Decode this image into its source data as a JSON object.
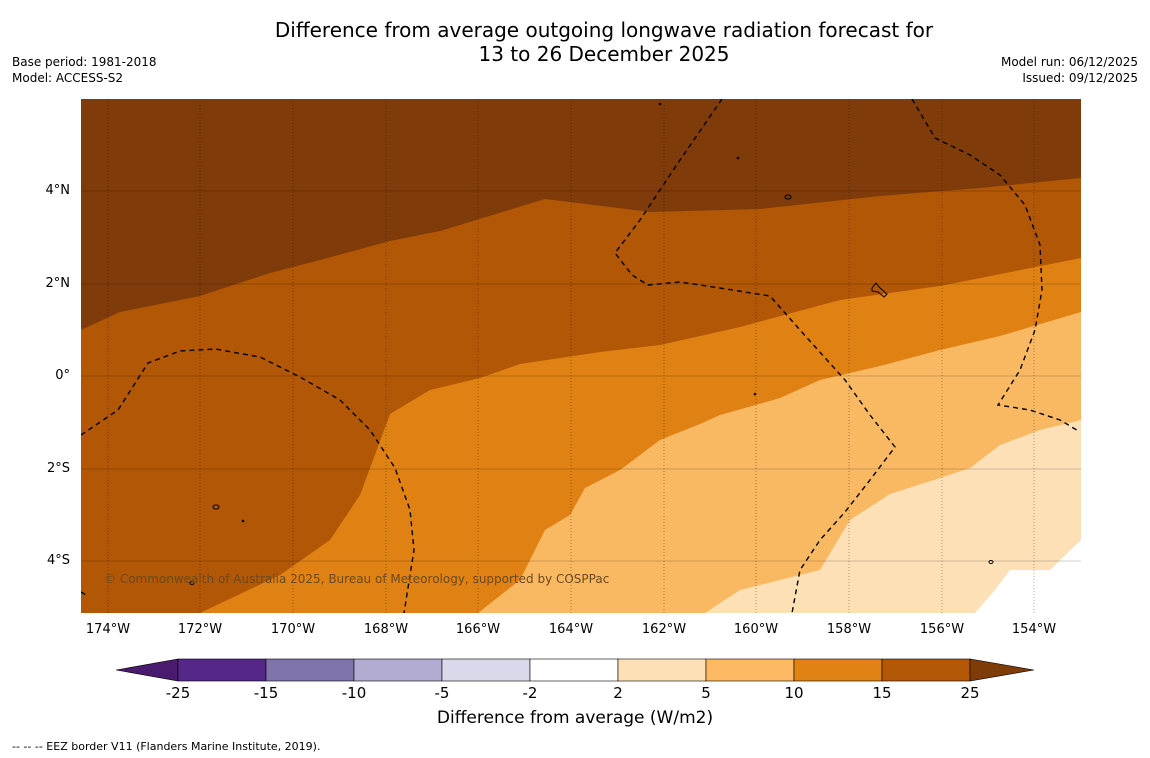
{
  "title": {
    "line1": "Difference from average outgoing longwave radiation forecast for",
    "line2": "13 to 26 December 2025"
  },
  "meta_left": {
    "base_period": "Base period: 1981-2018",
    "model": "Model: ACCESS-S2"
  },
  "meta_right": {
    "model_run": "Model run: 06/12/2025",
    "issued": "Issued: 09/12/2025"
  },
  "map": {
    "lat_labels": [
      "4°N",
      "2°N",
      "0°",
      "2°S",
      "4°S"
    ],
    "lon_labels": [
      "174°W",
      "172°W",
      "170°W",
      "168°W",
      "166°W",
      "164°W",
      "162°W",
      "160°W",
      "158°W",
      "156°W",
      "154°W"
    ],
    "credit": "© Commonwealth of Australia 2025, Bureau of Meteorology, supported by COSPPac",
    "colors": {
      "gt25": "#7f3c0a",
      "15_25": "#b15706",
      "10_15": "#e08114",
      "5_10": "#f9b862",
      "2_5": "#fde0b6",
      "neg2_2": "#ffffff"
    }
  },
  "colorbar": {
    "ticks": [
      "-25",
      "-15",
      "-10",
      "-5",
      "-2",
      "2",
      "5",
      "10",
      "15",
      "25"
    ],
    "colors": [
      "#4a1a6e",
      "#542788",
      "#8073ac",
      "#b2abd2",
      "#d8daeb",
      "#ffffff",
      "#fee0b6",
      "#fdb863",
      "#e08214",
      "#b35806",
      "#7f3b08"
    ],
    "label": "Difference from average (W/m2)"
  },
  "footer": "--  --  -- EEZ border V11 (Flanders Marine Institute, 2019)."
}
